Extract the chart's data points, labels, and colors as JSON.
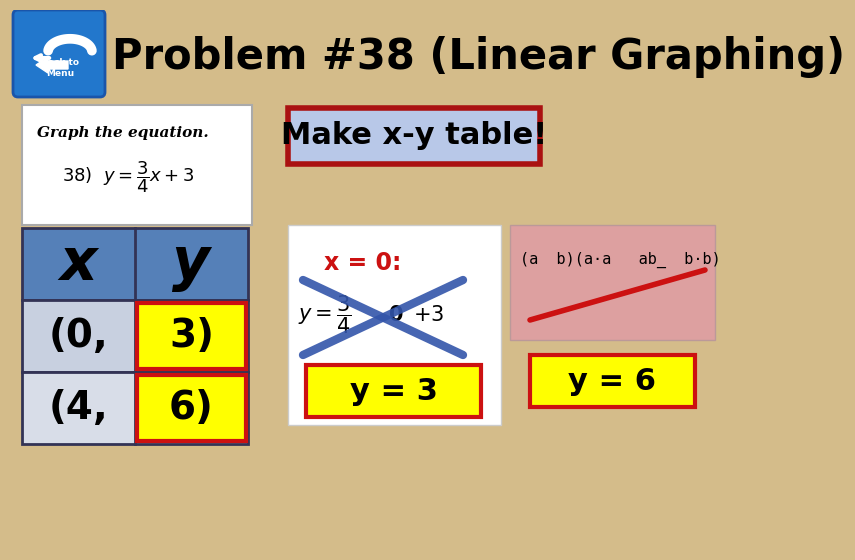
{
  "title": "Problem #38 (Linear Graphing)",
  "title_fontsize": 30,
  "title_fontweight": "bold",
  "bg_color": "#d4bc8a",
  "equation_box_bg": "#ffffff",
  "make_table_text": "Make x-y table!",
  "make_table_box_bg": "#b8c8e8",
  "make_table_box_border": "#aa1111",
  "table_header_bg": "#5580b8",
  "table_row1_bg": "#c8d0e0",
  "table_row2_bg": "#d8dde8",
  "table_x_label": "x",
  "table_y_label": "y",
  "table_row1_x": "(0,",
  "table_row1_y": "3)",
  "table_row2_x": "(4,",
  "table_row2_y": "6)",
  "y3_box_bg": "#ffff00",
  "y3_box_border": "#cc1111",
  "y3_text": "y = 3",
  "y6_box_bg": "#ffff00",
  "y6_box_border": "#cc1111",
  "y6_text": "y = 6",
  "x0_label_color": "#cc1111",
  "right_panel_bg": "#dda0a0",
  "right_panel_text": "(a  b)(a·a   ab_  b·b)",
  "cross_color": "#3355aa",
  "strike_color": "#cc1111",
  "arrow_color": "#2277cc",
  "arrow_text": "Back to\nMenu"
}
